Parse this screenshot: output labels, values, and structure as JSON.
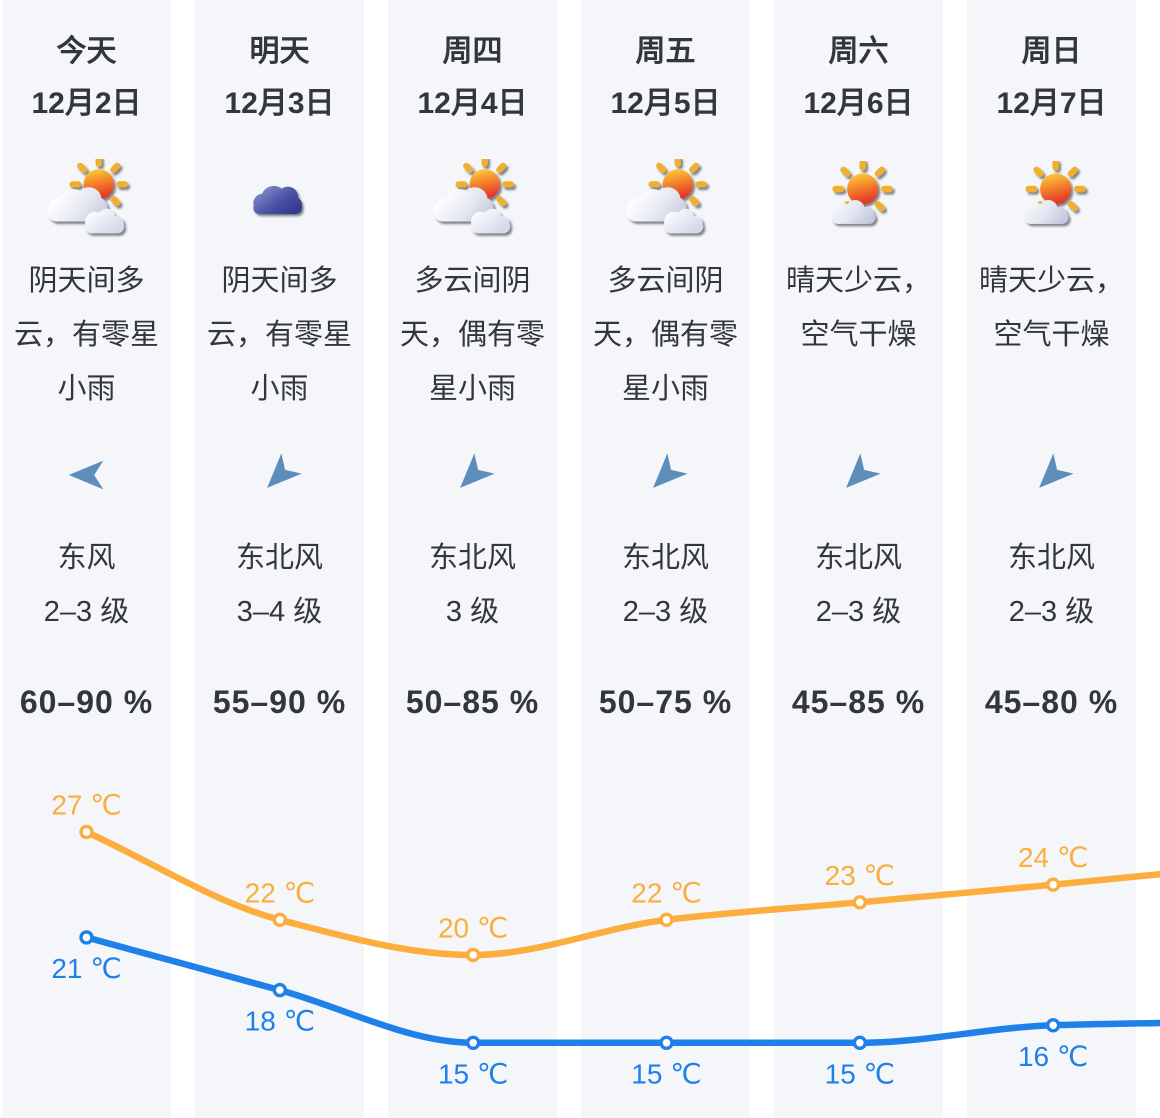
{
  "colors": {
    "page_bg": "#ffffff",
    "column_bg": "#f4f6fa",
    "text": "#33363c",
    "wind_arrow": "#5d8dbb",
    "high_temp": "#fbad3e",
    "low_temp": "#1e80e8"
  },
  "days": [
    {
      "day": "今天",
      "date": "12月2日",
      "icon": "sun-behind-clouds",
      "condition": "阴天间多\n云，有零星\n小雨",
      "wind_direction": "东风",
      "wind_from": "E",
      "wind_level": "2–3 级",
      "humidity": "60–90 %"
    },
    {
      "day": "明天",
      "date": "12月3日",
      "icon": "cloud",
      "condition": "阴天间多\n云，有零星\n小雨",
      "wind_direction": "东北风",
      "wind_from": "NE",
      "wind_level": "3–4 级",
      "humidity": "55–90 %"
    },
    {
      "day": "周四",
      "date": "12月4日",
      "icon": "sun-behind-clouds",
      "condition": "多云间阴\n天，偶有零\n星小雨",
      "wind_direction": "东北风",
      "wind_from": "NE",
      "wind_level": "3 级",
      "humidity": "50–85 %"
    },
    {
      "day": "周五",
      "date": "12月5日",
      "icon": "sun-behind-clouds",
      "condition": "多云间阴\n天，偶有零\n星小雨",
      "wind_direction": "东北风",
      "wind_from": "NE",
      "wind_level": "2–3 级",
      "humidity": "50–75 %"
    },
    {
      "day": "周六",
      "date": "12月6日",
      "icon": "sun-small-cloud",
      "condition": "晴天少云，\n空气干燥",
      "wind_direction": "东北风",
      "wind_from": "NE",
      "wind_level": "2–3 级",
      "humidity": "45–85 %"
    },
    {
      "day": "周日",
      "date": "12月7日",
      "icon": "sun-small-cloud",
      "condition": "晴天少云，\n空气干燥",
      "wind_direction": "东北风",
      "wind_from": "NE",
      "wind_level": "2–3 级",
      "humidity": "45–80 %"
    }
  ],
  "chart_data": {
    "type": "line",
    "categories": [
      "今天",
      "明天",
      "周四",
      "周五",
      "周六",
      "周日"
    ],
    "unit": "℃",
    "series": [
      {
        "name": "high_temp",
        "color": "#fbad3e",
        "values": [
          27,
          22,
          20,
          22,
          23,
          24
        ],
        "label_position": "above"
      },
      {
        "name": "low_temp",
        "color": "#1e80e8",
        "values": [
          21,
          18,
          15,
          15,
          15,
          16
        ],
        "label_position": "below"
      }
    ],
    "ylim": [
      14,
      28
    ],
    "smooth": true,
    "markers": "hollow-circle",
    "axes_visible": false,
    "legend": "none"
  }
}
